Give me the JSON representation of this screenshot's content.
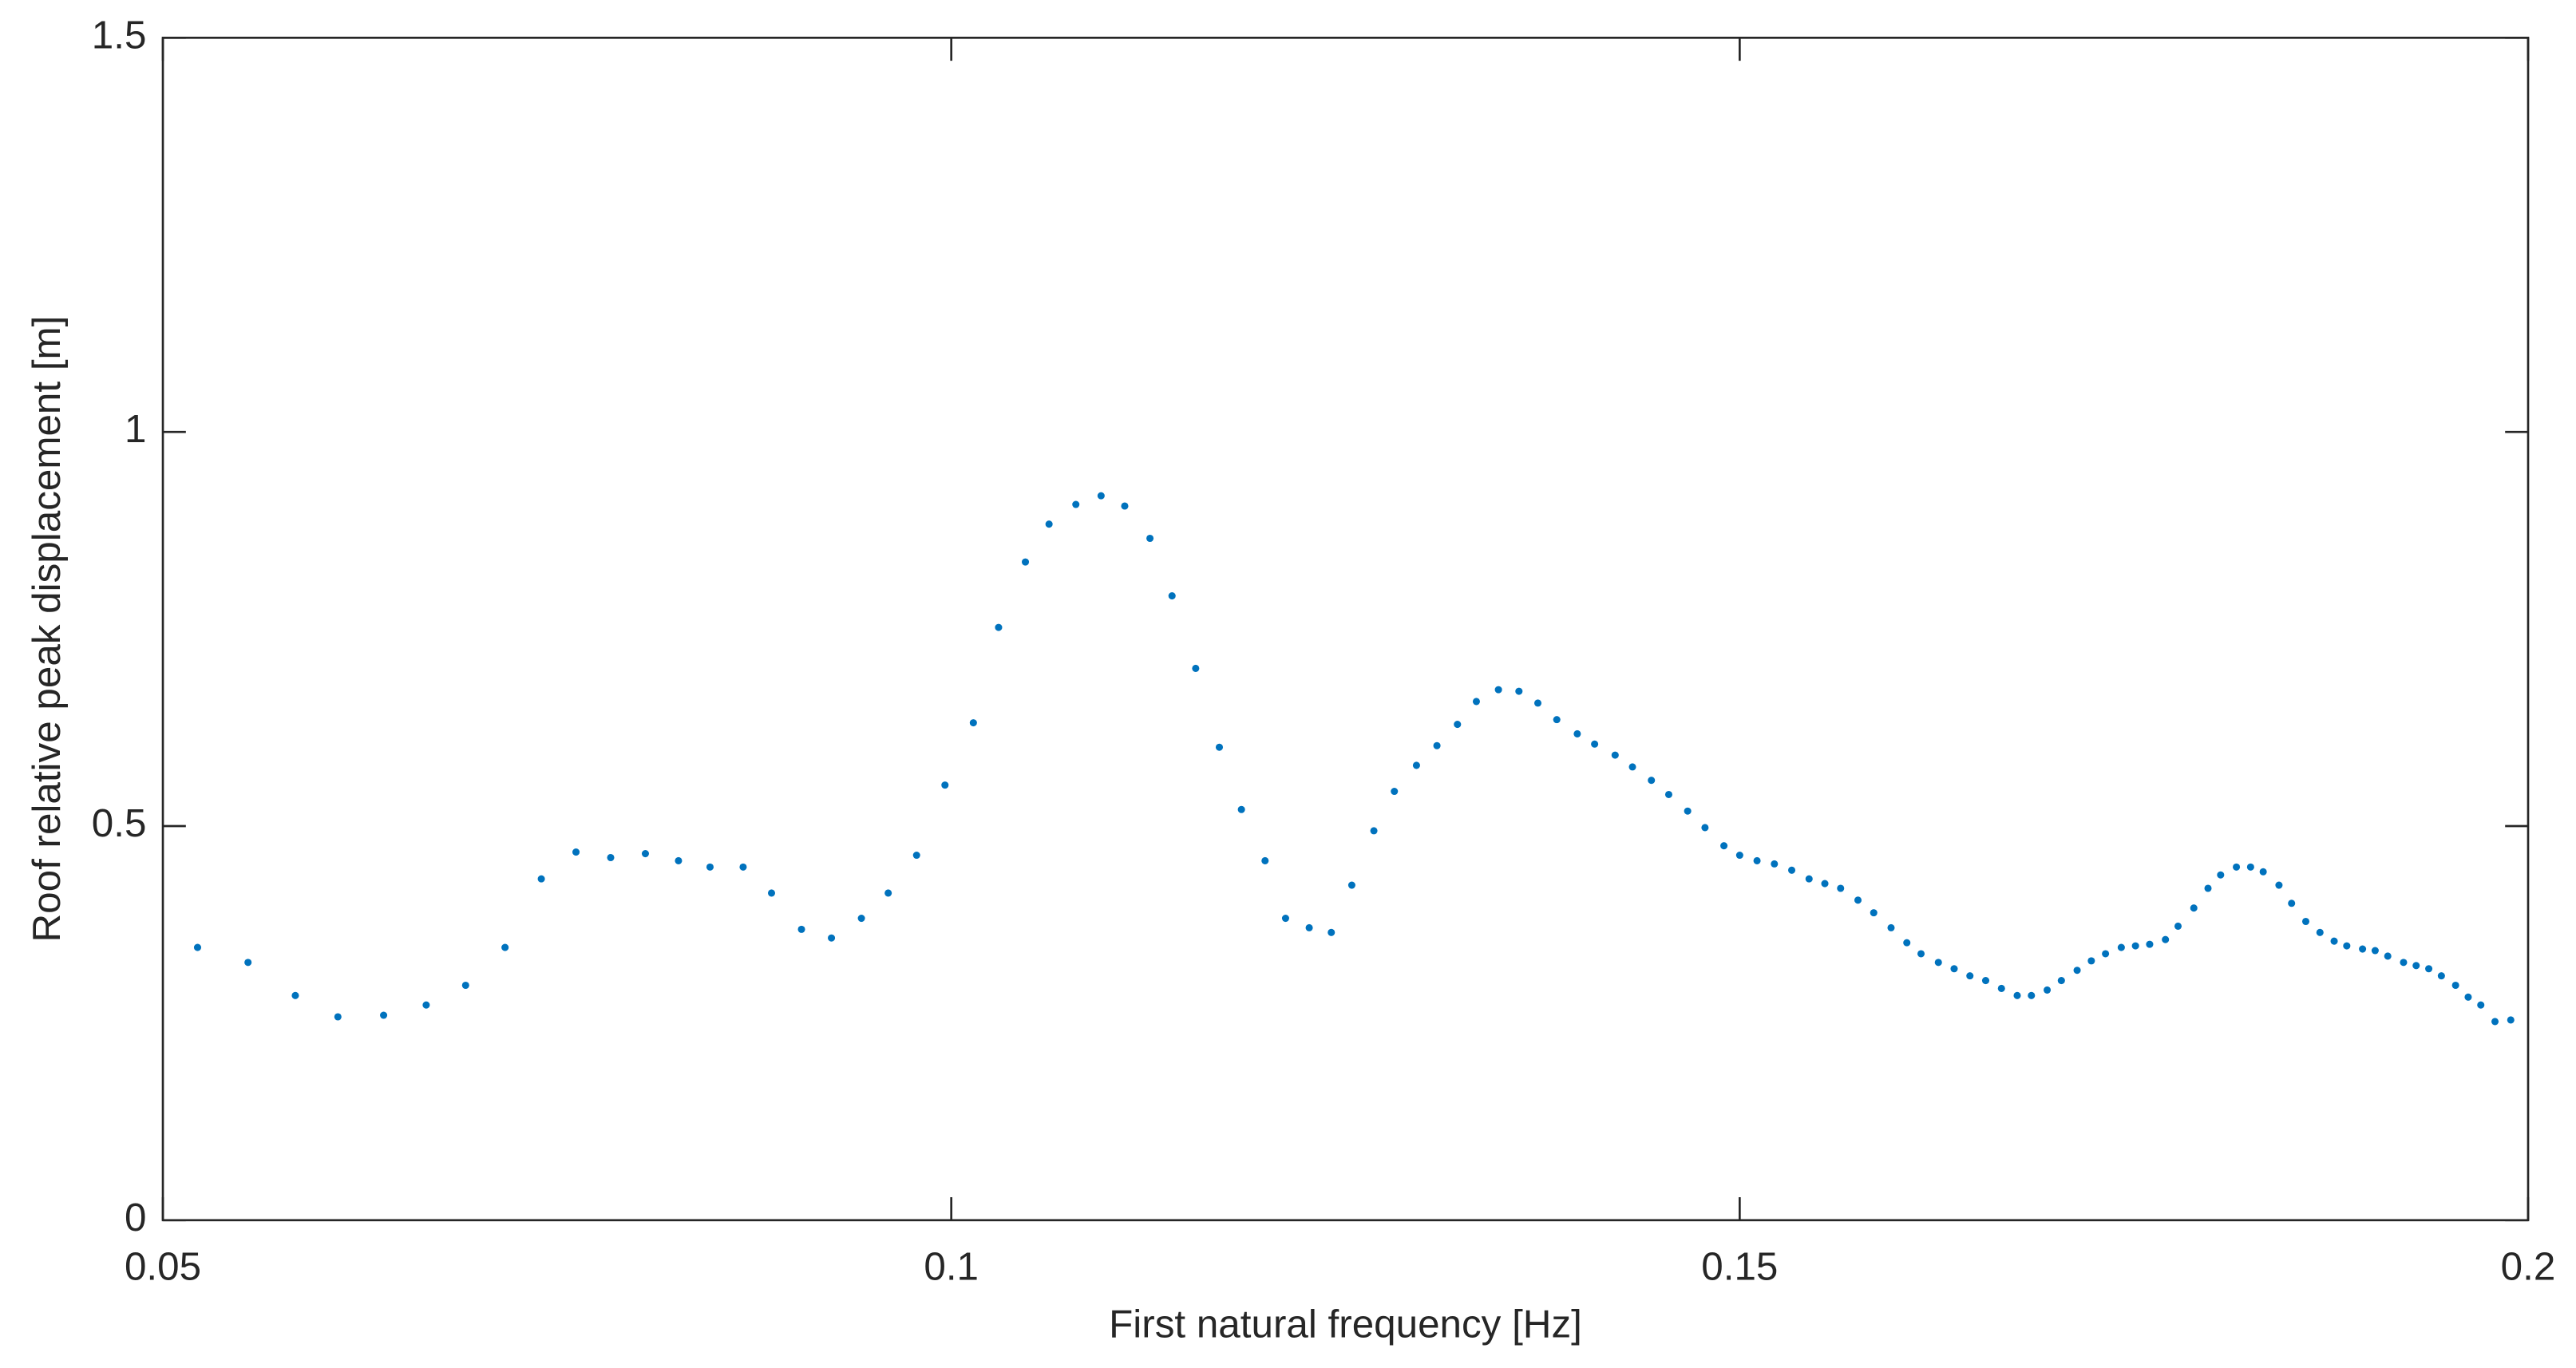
{
  "chart_data": {
    "type": "scatter",
    "xlabel": "First natural frequency [Hz]",
    "ylabel": "Roof relative peak displacement [m]",
    "color": "#0072bd",
    "xlim": [
      0.05,
      0.2
    ],
    "xticks": [
      0.05,
      0.1,
      0.15,
      0.2
    ],
    "ylim": [
      0,
      1.5
    ],
    "yticks": [
      0,
      0.5,
      1,
      1.5
    ],
    "grid": false,
    "x": [
      0.0522,
      0.0554,
      0.0584,
      0.0611,
      0.064,
      0.0667,
      0.0692,
      0.0717,
      0.074,
      0.0762,
      0.0784,
      0.0806,
      0.0827,
      0.0847,
      0.0868,
      0.0886,
      0.0905,
      0.0924,
      0.0943,
      0.096,
      0.0978,
      0.0996,
      0.1014,
      0.103,
      0.1047,
      0.1062,
      0.1079,
      0.1095,
      0.111,
      0.1126,
      0.114,
      0.1155,
      0.117,
      0.1184,
      0.1199,
      0.1212,
      0.1227,
      0.1241,
      0.1254,
      0.1268,
      0.1281,
      0.1295,
      0.1308,
      0.1321,
      0.1333,
      0.1347,
      0.136,
      0.1372,
      0.1384,
      0.1397,
      0.1408,
      0.1421,
      0.1432,
      0.1444,
      0.1455,
      0.1467,
      0.1478,
      0.149,
      0.15,
      0.1511,
      0.1522,
      0.1533,
      0.1544,
      0.1554,
      0.1564,
      0.1575,
      0.1585,
      0.1596,
      0.1606,
      0.1615,
      0.1626,
      0.1636,
      0.1646,
      0.1656,
      0.1666,
      0.1676,
      0.1685,
      0.1695,
      0.1704,
      0.1714,
      0.1723,
      0.1732,
      0.1742,
      0.1751,
      0.176,
      0.177,
      0.1778,
      0.1788,
      0.1797,
      0.1805,
      0.1815,
      0.1824,
      0.1832,
      0.1842,
      0.185,
      0.1859,
      0.1868,
      0.1877,
      0.1885,
      0.1895,
      0.1903,
      0.1911,
      0.1921,
      0.1929,
      0.1937,
      0.1945,
      0.1954,
      0.1962,
      0.197,
      0.1979,
      0.1989
    ],
    "values": [
      0.346,
      0.327,
      0.285,
      0.258,
      0.26,
      0.273,
      0.298,
      0.346,
      0.433,
      0.467,
      0.46,
      0.465,
      0.456,
      0.448,
      0.448,
      0.415,
      0.369,
      0.358,
      0.383,
      0.415,
      0.463,
      0.552,
      0.631,
      0.752,
      0.835,
      0.883,
      0.908,
      0.919,
      0.906,
      0.865,
      0.792,
      0.7,
      0.6,
      0.521,
      0.456,
      0.383,
      0.371,
      0.365,
      0.425,
      0.494,
      0.544,
      0.577,
      0.602,
      0.629,
      0.658,
      0.673,
      0.671,
      0.656,
      0.635,
      0.617,
      0.604,
      0.59,
      0.575,
      0.558,
      0.54,
      0.519,
      0.498,
      0.475,
      0.463,
      0.456,
      0.452,
      0.444,
      0.433,
      0.427,
      0.421,
      0.406,
      0.39,
      0.371,
      0.352,
      0.338,
      0.327,
      0.319,
      0.31,
      0.304,
      0.294,
      0.285,
      0.285,
      0.292,
      0.304,
      0.317,
      0.329,
      0.338,
      0.346,
      0.348,
      0.35,
      0.356,
      0.373,
      0.396,
      0.421,
      0.438,
      0.448,
      0.448,
      0.442,
      0.425,
      0.402,
      0.379,
      0.365,
      0.354,
      0.348,
      0.344,
      0.342,
      0.335,
      0.327,
      0.323,
      0.319,
      0.31,
      0.298,
      0.283,
      0.273,
      0.252,
      0.254
    ]
  }
}
